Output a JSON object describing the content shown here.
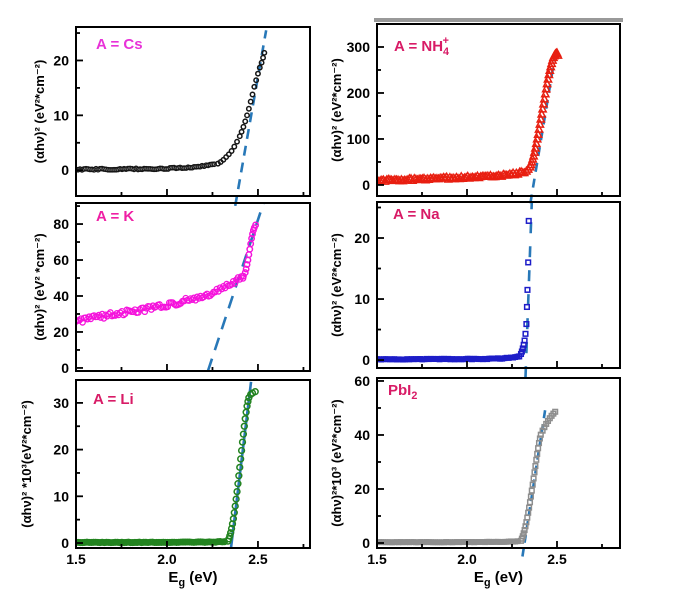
{
  "figure": {
    "background": "#ffffff",
    "axis_color": "#000000",
    "fit_line_color": "#2878b8",
    "x_axis_label": "E_g (eV)",
    "x_tick_labels": [
      "1.5",
      "2.0",
      "2.5"
    ]
  },
  "chart_data": [
    {
      "id": "cs",
      "type": "scatter",
      "title": "A = Cs",
      "title_color": "#e832d8",
      "marker": "circle",
      "color": "#161616",
      "marker_size": 2.2,
      "xlim": [
        1.5,
        2.786
      ],
      "ylim": [
        -4.7,
        26.1
      ],
      "xticks": [
        1.5,
        2.0,
        2.5
      ],
      "xminor": [
        1.75,
        2.25,
        2.75
      ],
      "yticks": [
        0,
        10,
        20
      ],
      "yminor": [
        5,
        15,
        25
      ],
      "ylabel": "(αhν)² (eV²*cm⁻²)",
      "xlabel": null,
      "show_x_tick_labels": false,
      "fit_line": {
        "x1": 2.375,
        "y1": -6.5,
        "x2": 2.545,
        "y2": 25.5,
        "dash": "10 7"
      },
      "baseline": {
        "style": "scatter",
        "step": 0.011,
        "jitter": 0.13,
        "anchors": [
          [
            1.5,
            0.15
          ],
          [
            1.8,
            0.2
          ],
          [
            2.0,
            0.3
          ],
          [
            2.1,
            0.45
          ],
          [
            2.2,
            0.75
          ],
          [
            2.26,
            1.05
          ]
        ]
      },
      "points": [
        [
          2.28,
          1.2
        ],
        [
          2.295,
          1.5
        ],
        [
          2.31,
          1.9
        ],
        [
          2.325,
          2.4
        ],
        [
          2.34,
          2.9
        ],
        [
          2.355,
          3.5
        ],
        [
          2.37,
          4.3
        ],
        [
          2.385,
          5.2
        ],
        [
          2.4,
          6.2
        ],
        [
          2.41,
          7.0
        ],
        [
          2.42,
          7.9
        ],
        [
          2.43,
          8.9
        ],
        [
          2.44,
          10.0
        ],
        [
          2.45,
          11.2
        ],
        [
          2.46,
          12.5
        ],
        [
          2.47,
          13.8
        ],
        [
          2.48,
          15.2
        ],
        [
          2.49,
          16.4
        ],
        [
          2.5,
          17.6
        ],
        [
          2.51,
          18.7
        ],
        [
          2.52,
          19.6
        ],
        [
          2.528,
          20.5
        ],
        [
          2.535,
          21.4
        ]
      ]
    },
    {
      "id": "nh4",
      "type": "scatter",
      "title": "A = NH_4^+",
      "title_color": "#d81b66",
      "marker": "triangle",
      "color": "#e81e10",
      "marker_size": 3.0,
      "xlim": [
        1.5,
        2.85
      ],
      "ylim": [
        -24,
        350
      ],
      "xticks": [
        1.5,
        2.0,
        2.5
      ],
      "xminor": [
        1.75,
        2.25,
        2.75
      ],
      "yticks": [
        0,
        100,
        200,
        300
      ],
      "yminor": [
        50,
        150,
        250,
        350
      ],
      "ylabel": "(αhν)² (eV²*cm⁻²)",
      "xlabel": null,
      "show_x_tick_labels": false,
      "fit_line": {
        "x1": 2.352,
        "y1": -40,
        "x2": 2.497,
        "y2": 300,
        "dash": "9 7"
      },
      "baseline": {
        "style": "scatter",
        "step": 0.009,
        "jitter": 2.4,
        "anchors": [
          [
            1.5,
            9
          ],
          [
            1.7,
            12
          ],
          [
            1.9,
            15
          ],
          [
            2.0,
            16.5
          ],
          [
            2.1,
            18.5
          ],
          [
            2.2,
            21
          ],
          [
            2.28,
            25
          ],
          [
            2.32,
            28
          ]
        ]
      },
      "points": [
        [
          2.33,
          30
        ],
        [
          2.34,
          34
        ],
        [
          2.35,
          39
        ],
        [
          2.355,
          44
        ],
        [
          2.36,
          50
        ],
        [
          2.365,
          56
        ],
        [
          2.37,
          63
        ],
        [
          2.375,
          71
        ],
        [
          2.38,
          80
        ],
        [
          2.385,
          90
        ],
        [
          2.39,
          100
        ],
        [
          2.395,
          110
        ],
        [
          2.4,
          121
        ],
        [
          2.405,
          132
        ],
        [
          2.41,
          143
        ],
        [
          2.415,
          154
        ],
        [
          2.42,
          165
        ],
        [
          2.425,
          176
        ],
        [
          2.43,
          187
        ],
        [
          2.435,
          198
        ],
        [
          2.44,
          209
        ],
        [
          2.445,
          220
        ],
        [
          2.45,
          230
        ],
        [
          2.455,
          240
        ],
        [
          2.46,
          249
        ],
        [
          2.465,
          257
        ],
        [
          2.47,
          264
        ],
        [
          2.475,
          271
        ],
        [
          2.48,
          277
        ],
        [
          2.485,
          281
        ],
        [
          2.49,
          284
        ],
        [
          2.495,
          286
        ],
        [
          2.5,
          287
        ],
        [
          2.505,
          282
        ]
      ]
    },
    {
      "id": "k",
      "type": "scatter",
      "title": "A = K",
      "title_color": "#ef1fa4",
      "marker": "circle",
      "color": "#f513dc",
      "marker_size": 2.7,
      "xlim": [
        1.5,
        2.786
      ],
      "ylim": [
        -1.7,
        91.7
      ],
      "xticks": [
        1.5,
        2.0,
        2.5
      ],
      "xminor": [
        1.75,
        2.25,
        2.75
      ],
      "yticks": [
        0,
        20,
        40,
        60,
        80
      ],
      "yminor": [
        10,
        30,
        50,
        70,
        90
      ],
      "ylabel": "(αhν)² (eV² *cm⁻²)",
      "xlabel": null,
      "show_x_tick_labels": false,
      "fit_line": {
        "x1": 2.225,
        "y1": -1.7,
        "x2": 2.53,
        "y2": 91.5,
        "dash": "13 9"
      },
      "baseline": {
        "style": "scatter",
        "step": 0.009,
        "jitter": 1.4,
        "anchors": [
          [
            1.5,
            26
          ],
          [
            1.6,
            28
          ],
          [
            1.75,
            30.5
          ],
          [
            1.9,
            33
          ],
          [
            2.05,
            36
          ],
          [
            2.2,
            40
          ],
          [
            2.3,
            44
          ],
          [
            2.36,
            47
          ],
          [
            2.4,
            49.5
          ],
          [
            2.42,
            51
          ]
        ]
      },
      "points": [
        [
          2.42,
          51
        ],
        [
          2.43,
          53
        ],
        [
          2.435,
          55
        ],
        [
          2.44,
          57.5
        ],
        [
          2.445,
          60
        ],
        [
          2.45,
          63
        ],
        [
          2.455,
          66
        ],
        [
          2.46,
          69
        ],
        [
          2.465,
          72
        ],
        [
          2.47,
          74.5
        ],
        [
          2.475,
          76.5
        ],
        [
          2.48,
          78
        ],
        [
          2.487,
          79.5
        ]
      ]
    },
    {
      "id": "na",
      "type": "scatter",
      "title": "A = Na",
      "title_color": "#d81b66",
      "marker": "square",
      "color": "#1d1dc8",
      "marker_size": 2.3,
      "xlim": [
        1.5,
        2.85
      ],
      "ylim": [
        -1.3,
        25.9
      ],
      "xticks": [
        1.5,
        2.0,
        2.5
      ],
      "xminor": [
        1.75,
        2.25,
        2.75
      ],
      "yticks": [
        0,
        10,
        20
      ],
      "yminor": [
        5,
        15,
        25
      ],
      "ylabel": "(αhν)² (eV²*cm⁻²)",
      "xlabel": null,
      "show_x_tick_labels": false,
      "fit_line": {
        "x1": 2.325,
        "y1": -2.8,
        "x2": 2.36,
        "y2": 25.9,
        "dash": "11 13"
      },
      "baseline": {
        "style": "solid",
        "band_width": 5,
        "step": 0.012,
        "jitter": 0.06,
        "anchors": [
          [
            1.5,
            0.12
          ],
          [
            1.9,
            0.15
          ],
          [
            2.1,
            0.2
          ],
          [
            2.2,
            0.28
          ],
          [
            2.26,
            0.45
          ],
          [
            2.285,
            0.6
          ]
        ]
      },
      "points": [
        [
          2.29,
          0.6
        ],
        [
          2.3,
          1.0
        ],
        [
          2.305,
          1.4
        ],
        [
          2.31,
          1.9
        ],
        [
          2.315,
          2.5
        ],
        [
          2.32,
          3.2
        ],
        [
          2.325,
          4.3
        ],
        [
          2.33,
          5.9
        ],
        [
          2.333,
          8.7
        ],
        [
          2.336,
          11.5
        ],
        [
          2.34,
          16.0
        ],
        [
          2.343,
          22.8
        ]
      ]
    },
    {
      "id": "li",
      "type": "scatter",
      "title": "A = Li",
      "title_color": "#d81b66",
      "marker": "circle",
      "color": "#22831f",
      "marker_size": 2.9,
      "xlim": [
        1.5,
        2.786
      ],
      "ylim": [
        -1.07,
        34.9
      ],
      "xticks": [
        1.5,
        2.0,
        2.5
      ],
      "xminor": [
        1.75,
        2.25,
        2.75
      ],
      "yticks": [
        0,
        10,
        20,
        30
      ],
      "yminor": [
        5,
        15,
        25
      ],
      "ylabel": "(αhν)² *10³(eV²*cm⁻²)",
      "xlabel": "E_g (eV)",
      "show_x_tick_labels": true,
      "fit_line": {
        "x1": 2.352,
        "y1": -1.0,
        "x2": 2.462,
        "y2": 34.5,
        "dash": null
      },
      "baseline": {
        "style": "solid",
        "band_width": 4.5,
        "step": 0.012,
        "jitter": 0.05,
        "anchors": [
          [
            1.5,
            0.12
          ],
          [
            2.0,
            0.14
          ],
          [
            2.25,
            0.2
          ],
          [
            2.32,
            0.3
          ]
        ]
      },
      "points": [
        [
          2.335,
          0.4
        ],
        [
          2.34,
          0.9
        ],
        [
          2.345,
          1.5
        ],
        [
          2.35,
          2.2
        ],
        [
          2.355,
          3.1
        ],
        [
          2.36,
          4.1
        ],
        [
          2.365,
          5.2
        ],
        [
          2.37,
          6.5
        ],
        [
          2.375,
          7.9
        ],
        [
          2.38,
          9.4
        ],
        [
          2.385,
          11.0
        ],
        [
          2.39,
          12.7
        ],
        [
          2.395,
          14.4
        ],
        [
          2.4,
          16.2
        ],
        [
          2.405,
          18.0
        ],
        [
          2.41,
          19.8
        ],
        [
          2.415,
          21.6
        ],
        [
          2.42,
          23.3
        ],
        [
          2.425,
          25.0
        ],
        [
          2.43,
          26.6
        ],
        [
          2.435,
          28.0
        ],
        [
          2.44,
          29.3
        ],
        [
          2.445,
          30.3
        ],
        [
          2.45,
          31.1
        ],
        [
          2.46,
          31.8
        ],
        [
          2.47,
          32.1
        ],
        [
          2.485,
          32.4
        ]
      ]
    },
    {
      "id": "pbi2",
      "type": "scatter",
      "title": "PbI_2",
      "title_color": "#d81b66",
      "marker": "square",
      "color": "#8e8e8e",
      "marker_size": 2.3,
      "xlim": [
        1.5,
        2.85
      ],
      "ylim": [
        -1.85,
        61.1
      ],
      "xticks": [
        1.5,
        2.0,
        2.5
      ],
      "xminor": [
        1.75,
        2.25,
        2.75
      ],
      "yticks": [
        0,
        20,
        40,
        60
      ],
      "yminor": [
        10,
        30,
        50
      ],
      "ylabel": "(αhν)²*10³ (eV²*cm⁻²)",
      "xlabel": "E_g (eV)",
      "show_x_tick_labels": true,
      "fit_line": {
        "x1": 2.308,
        "y1": -5,
        "x2": 2.437,
        "y2": 50.5,
        "dash": "8 6"
      },
      "baseline": {
        "style": "solid",
        "band_width": 4.5,
        "step": 0.012,
        "jitter": 0.07,
        "anchors": [
          [
            1.5,
            0.3
          ],
          [
            2.0,
            0.32
          ],
          [
            2.2,
            0.42
          ],
          [
            2.29,
            0.65
          ]
        ]
      },
      "points": [
        [
          2.3,
          0.8
        ],
        [
          2.305,
          1.6
        ],
        [
          2.31,
          2.5
        ],
        [
          2.315,
          3.6
        ],
        [
          2.32,
          4.8
        ],
        [
          2.325,
          6.2
        ],
        [
          2.33,
          7.7
        ],
        [
          2.335,
          9.4
        ],
        [
          2.34,
          11.2
        ],
        [
          2.345,
          13.1
        ],
        [
          2.35,
          15.1
        ],
        [
          2.355,
          17.2
        ],
        [
          2.36,
          19.4
        ],
        [
          2.365,
          21.6
        ],
        [
          2.37,
          23.9
        ],
        [
          2.375,
          26.2
        ],
        [
          2.38,
          28.5
        ],
        [
          2.385,
          30.8
        ],
        [
          2.39,
          33.0
        ],
        [
          2.395,
          35.1
        ],
        [
          2.4,
          37.0
        ],
        [
          2.405,
          38.7
        ],
        [
          2.41,
          40.1
        ],
        [
          2.42,
          41.6
        ],
        [
          2.43,
          42.9
        ],
        [
          2.44,
          44.1
        ],
        [
          2.45,
          45.2
        ],
        [
          2.46,
          46.2
        ],
        [
          2.47,
          47.1
        ],
        [
          2.48,
          47.9
        ],
        [
          2.49,
          48.6
        ]
      ]
    }
  ]
}
